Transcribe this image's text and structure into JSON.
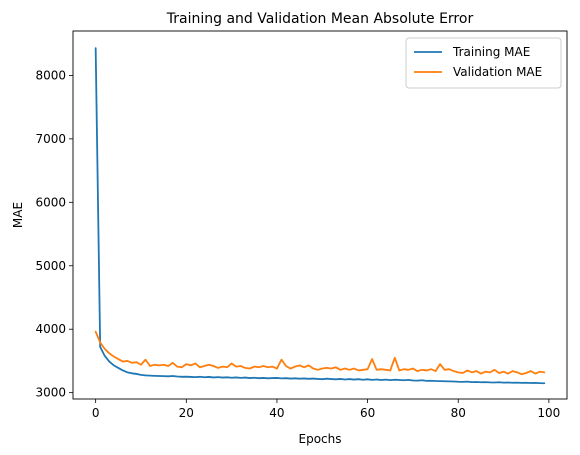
{
  "chart_data": {
    "type": "line",
    "title": "Training and Validation Mean Absolute Error",
    "xlabel": "Epochs",
    "ylabel": "MAE",
    "xlim": [
      -5,
      104
    ],
    "ylim": [
      2900,
      8700
    ],
    "xticks": [
      0,
      20,
      40,
      60,
      80,
      100
    ],
    "yticks": [
      3000,
      4000,
      5000,
      6000,
      7000,
      8000
    ],
    "grid": false,
    "legend_position": "top-right",
    "series": [
      {
        "name": "Training MAE",
        "color": "#1f77b4",
        "x": [
          0,
          1,
          2,
          3,
          4,
          5,
          6,
          7,
          8,
          9,
          10,
          11,
          12,
          13,
          14,
          15,
          16,
          17,
          18,
          19,
          20,
          21,
          22,
          23,
          24,
          25,
          26,
          27,
          28,
          29,
          30,
          31,
          32,
          33,
          34,
          35,
          36,
          37,
          38,
          39,
          40,
          41,
          42,
          43,
          44,
          45,
          46,
          47,
          48,
          49,
          50,
          51,
          52,
          53,
          54,
          55,
          56,
          57,
          58,
          59,
          60,
          61,
          62,
          63,
          64,
          65,
          66,
          67,
          68,
          69,
          70,
          71,
          72,
          73,
          74,
          75,
          76,
          77,
          78,
          79,
          80,
          81,
          82,
          83,
          84,
          85,
          86,
          87,
          88,
          89,
          90,
          91,
          92,
          93,
          94,
          95,
          96,
          97,
          98,
          99
        ],
        "values": [
          8430,
          3720,
          3580,
          3490,
          3430,
          3390,
          3350,
          3320,
          3305,
          3295,
          3280,
          3272,
          3268,
          3265,
          3262,
          3260,
          3258,
          3262,
          3255,
          3250,
          3252,
          3248,
          3245,
          3250,
          3243,
          3248,
          3240,
          3245,
          3238,
          3242,
          3235,
          3240,
          3233,
          3238,
          3230,
          3235,
          3228,
          3232,
          3226,
          3230,
          3232,
          3225,
          3228,
          3222,
          3226,
          3220,
          3224,
          3218,
          3222,
          3216,
          3212,
          3220,
          3214,
          3210,
          3216,
          3208,
          3214,
          3206,
          3212,
          3204,
          3210,
          3202,
          3208,
          3200,
          3205,
          3198,
          3204,
          3200,
          3196,
          3202,
          3192,
          3190,
          3196,
          3186,
          3188,
          3184,
          3182,
          3180,
          3178,
          3176,
          3172,
          3170,
          3174,
          3166,
          3168,
          3164,
          3166,
          3162,
          3160,
          3164,
          3158,
          3160,
          3156,
          3158,
          3154,
          3156,
          3152,
          3154,
          3150,
          3148
        ]
      },
      {
        "name": "Validation MAE",
        "color": "#ff7f0e",
        "x": [
          0,
          1,
          2,
          3,
          4,
          5,
          6,
          7,
          8,
          9,
          10,
          11,
          12,
          13,
          14,
          15,
          16,
          17,
          18,
          19,
          20,
          21,
          22,
          23,
          24,
          25,
          26,
          27,
          28,
          29,
          30,
          31,
          32,
          33,
          34,
          35,
          36,
          37,
          38,
          39,
          40,
          41,
          42,
          43,
          44,
          45,
          46,
          47,
          48,
          49,
          50,
          51,
          52,
          53,
          54,
          55,
          56,
          57,
          58,
          59,
          60,
          61,
          62,
          63,
          64,
          65,
          66,
          67,
          68,
          69,
          70,
          71,
          72,
          73,
          74,
          75,
          76,
          77,
          78,
          79,
          80,
          81,
          82,
          83,
          84,
          85,
          86,
          87,
          88,
          89,
          90,
          91,
          92,
          93,
          94,
          95,
          96,
          97,
          98,
          99
        ],
        "values": [
          3960,
          3790,
          3690,
          3620,
          3570,
          3530,
          3490,
          3500,
          3470,
          3480,
          3440,
          3520,
          3420,
          3440,
          3430,
          3440,
          3420,
          3470,
          3410,
          3400,
          3450,
          3430,
          3460,
          3400,
          3420,
          3440,
          3420,
          3390,
          3410,
          3400,
          3460,
          3410,
          3420,
          3390,
          3380,
          3410,
          3400,
          3420,
          3400,
          3410,
          3380,
          3520,
          3420,
          3380,
          3410,
          3430,
          3400,
          3430,
          3380,
          3360,
          3380,
          3390,
          3380,
          3400,
          3360,
          3380,
          3360,
          3380,
          3350,
          3360,
          3370,
          3530,
          3360,
          3370,
          3360,
          3350,
          3550,
          3350,
          3370,
          3360,
          3380,
          3340,
          3360,
          3350,
          3370,
          3340,
          3450,
          3360,
          3370,
          3340,
          3320,
          3310,
          3350,
          3320,
          3340,
          3300,
          3330,
          3320,
          3360,
          3310,
          3330,
          3300,
          3340,
          3320,
          3290,
          3310,
          3340,
          3300,
          3330,
          3320
        ]
      }
    ]
  }
}
